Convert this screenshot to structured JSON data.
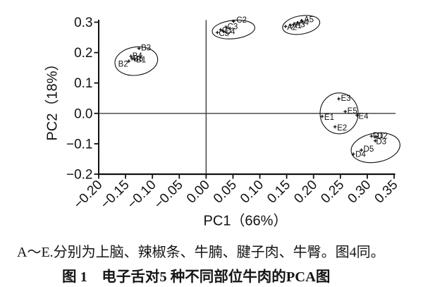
{
  "captions": {
    "note": "A～E.分别为上脑、辣椒条、牛腩、腱子肉、牛臀。图4同。",
    "title": "图 1　电子舌对5 种不同部位牛肉的PCA图"
  },
  "chart_data": {
    "type": "scatter",
    "title": "电子舌对5种不同部位牛肉的PCA图",
    "xlabel": "PC1（66%）",
    "ylabel": "PC2（18%）",
    "xlim": [
      -0.2,
      0.35
    ],
    "ylim": [
      -0.2,
      0.315
    ],
    "grid": false,
    "zero_lines": true,
    "marker": "plus",
    "ink_color": "#111111",
    "x_ticks": {
      "values": [
        -0.2,
        -0.15,
        -0.1,
        -0.05,
        0.0,
        0.05,
        0.1,
        0.15,
        0.2,
        0.25,
        0.3,
        0.35
      ],
      "labels": [
        "−0.20",
        "−0.15",
        "−0.10",
        "−0.05",
        "0.00",
        "0.05",
        "0.10",
        "0.15",
        "0.20",
        "0.25",
        "0.30",
        "0.35"
      ],
      "rotation": -45
    },
    "y_ticks": {
      "values": [
        0.3,
        0.2,
        0.1,
        0.0,
        -0.1,
        -0.2
      ],
      "labels": [
        "0.3",
        "0.2",
        "0.1",
        "0.0",
        "−0.1",
        "−0.2"
      ]
    },
    "series": [
      {
        "name": "A",
        "meaning_cn": "上脑",
        "points": [
          {
            "label": "A1",
            "x": 0.157,
            "y": 0.29,
            "bx": 2,
            "by": 4
          },
          {
            "label": "A2",
            "x": 0.148,
            "y": 0.286,
            "bx": 2,
            "by": 5
          },
          {
            "label": "A3",
            "x": 0.163,
            "y": 0.293,
            "bx": 2,
            "by": 4
          },
          {
            "label": "A4",
            "x": 0.17,
            "y": 0.298,
            "bx": 2,
            "by": 3
          },
          {
            "label": "A5",
            "x": 0.178,
            "y": 0.305,
            "bx": 3,
            "by": 2
          }
        ],
        "ellipse": {
          "cx": 0.177,
          "cy": 0.291,
          "rx": 0.035,
          "ry": 0.03,
          "rot": -10
        }
      },
      {
        "name": "B",
        "meaning_cn": "辣椒条",
        "points": [
          {
            "label": "B1",
            "x": -0.133,
            "y": 0.177,
            "bx": 2,
            "by": 4
          },
          {
            "label": "B2",
            "x": -0.144,
            "y": 0.172,
            "bx": -15,
            "by": 8
          },
          {
            "label": "B3",
            "x": -0.125,
            "y": 0.214,
            "bx": 3,
            "by": 3
          },
          {
            "label": "B4",
            "x": -0.14,
            "y": 0.188,
            "bx": 2,
            "by": 3
          },
          {
            "label": "B5",
            "x": -0.138,
            "y": 0.18,
            "bx": 2,
            "by": 4
          }
        ],
        "ellipse": {
          "cx": -0.13,
          "cy": 0.172,
          "rx": 0.04,
          "ry": 0.0465,
          "rot": -8
        }
      },
      {
        "name": "C",
        "meaning_cn": "牛腩",
        "points": [
          {
            "label": "C1",
            "x": 0.027,
            "y": 0.275,
            "bx": 2,
            "by": 4
          },
          {
            "label": "C2",
            "x": 0.051,
            "y": 0.303,
            "bx": 4,
            "by": 2
          },
          {
            "label": "C3",
            "x": 0.037,
            "y": 0.284,
            "bx": 2,
            "by": 3
          },
          {
            "label": "C4",
            "x": 0.032,
            "y": 0.27,
            "bx": 2,
            "by": 4
          },
          {
            "label": "C5",
            "x": 0.021,
            "y": 0.266,
            "bx": 2,
            "by": 5
          }
        ],
        "ellipse": {
          "cx": 0.051,
          "cy": 0.276,
          "rx": 0.0398,
          "ry": 0.0302,
          "rot": -6
        }
      },
      {
        "name": "D",
        "meaning_cn": "腱子肉",
        "points": [
          {
            "label": "D1",
            "x": 0.308,
            "y": -0.075,
            "bx": 2,
            "by": 3
          },
          {
            "label": "D2",
            "x": 0.316,
            "y": -0.076,
            "bx": 2,
            "by": 3
          },
          {
            "label": "D3",
            "x": 0.315,
            "y": -0.09,
            "bx": 1,
            "by": 5
          },
          {
            "label": "D4",
            "x": 0.274,
            "y": -0.134,
            "bx": 3,
            "by": 4
          },
          {
            "label": "D5",
            "x": 0.289,
            "y": -0.121,
            "bx": 3,
            "by": 2
          }
        ],
        "ellipse": {
          "cx": 0.3155,
          "cy": -0.113,
          "rx": 0.0459,
          "ry": 0.0476,
          "rot": -10
        }
      },
      {
        "name": "E",
        "meaning_cn": "牛臀",
        "points": [
          {
            "label": "E1",
            "x": 0.216,
            "y": -0.01,
            "bx": 3,
            "by": 5
          },
          {
            "label": "E2",
            "x": 0.24,
            "y": -0.044,
            "bx": 3,
            "by": 5
          },
          {
            "label": "E3",
            "x": 0.247,
            "y": 0.048,
            "bx": 3,
            "by": 3
          },
          {
            "label": "E4",
            "x": 0.281,
            "y": -0.006,
            "bx": 2,
            "by": 5
          },
          {
            "label": "E5",
            "x": 0.259,
            "y": 0.006,
            "bx": 3,
            "by": 3
          }
        ],
        "ellipse": {
          "cx": 0.2476,
          "cy": 0.0,
          "rx": 0.0354,
          "ry": 0.0673,
          "rot": 0
        }
      }
    ]
  }
}
